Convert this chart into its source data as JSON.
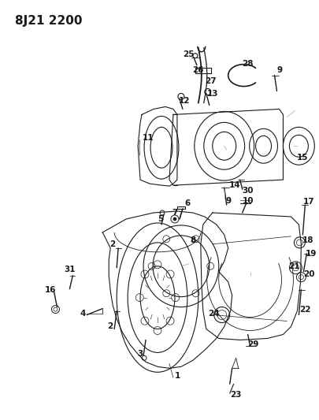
{
  "title": "8J21 2200",
  "bg": "#ffffff",
  "lc": "#1a1a1a",
  "lw": 0.8,
  "label_fs": 7.5,
  "title_fs": 11
}
